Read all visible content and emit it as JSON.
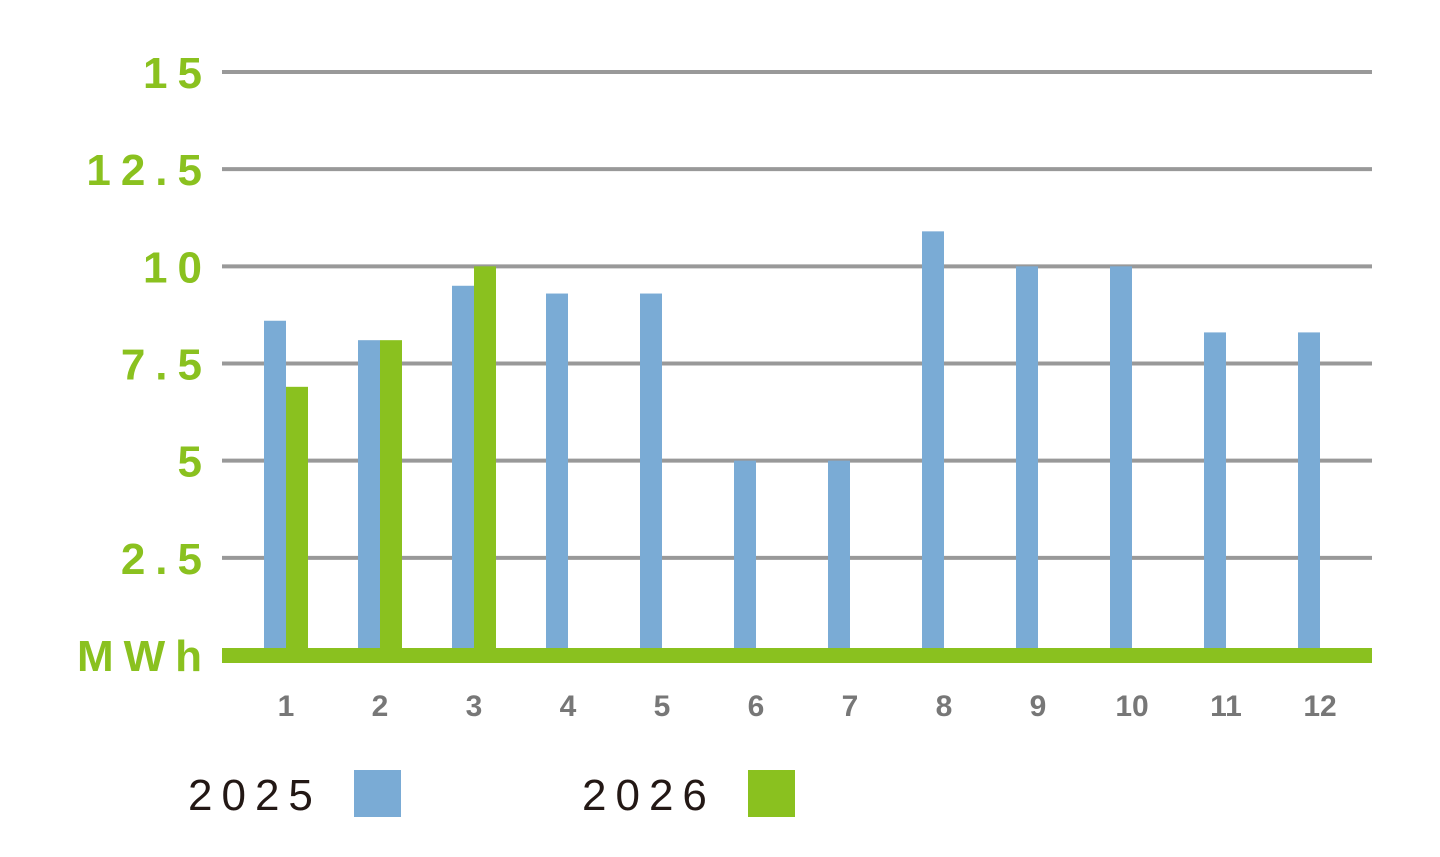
{
  "colors": {
    "series_2025": "#7aabd5",
    "series_2026": "#8ac11f",
    "axis_labels": "#8ac11f",
    "gridline": "#999999",
    "baseline": "#8ac11f",
    "x_tick_text": "#777777",
    "legend_text": "#231815"
  },
  "chart_data": {
    "type": "bar",
    "categories": [
      "1",
      "2",
      "3",
      "4",
      "5",
      "6",
      "7",
      "8",
      "9",
      "10",
      "11",
      "12"
    ],
    "series": [
      {
        "name": "2025",
        "values": [
          8.6,
          8.1,
          9.5,
          9.3,
          9.3,
          5.0,
          5.0,
          10.9,
          10.0,
          10.0,
          8.3,
          8.3
        ]
      },
      {
        "name": "2026",
        "values": [
          6.9,
          8.1,
          10.0,
          null,
          null,
          null,
          null,
          null,
          null,
          null,
          null,
          null
        ]
      }
    ],
    "y_ticks": [
      "MWh",
      "2.5",
      "5",
      "7.5",
      "10",
      "12.5",
      "15"
    ],
    "y_tick_values": [
      0,
      2.5,
      5,
      7.5,
      10,
      12.5,
      15
    ],
    "ylim": [
      0,
      15
    ],
    "grid": true,
    "legend_position": "bottom-left",
    "legend": [
      {
        "label": "2025",
        "color": "#7aabd5"
      },
      {
        "label": "2026",
        "color": "#8ac11f"
      }
    ]
  }
}
